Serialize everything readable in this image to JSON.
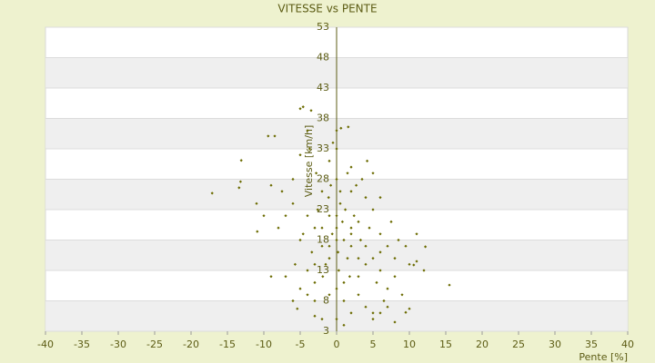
{
  "chart_data": {
    "type": "scatter",
    "title": "VITESSE vs PENTE",
    "x_label": "Pente [%]",
    "y_label": "Vitesse [km/h]",
    "color": "#6b6b00",
    "grid": true,
    "xlim": [
      -40,
      40
    ],
    "xticks": [
      -40,
      -35,
      -30,
      -25,
      -20,
      -15,
      -10,
      -5,
      0,
      5,
      10,
      15,
      20,
      25,
      30,
      35,
      40
    ],
    "ylim": [
      3,
      53
    ],
    "yticks": [
      3,
      8,
      13,
      18,
      23,
      28,
      33,
      38,
      43,
      48,
      53
    ],
    "x": [
      -17.1,
      -13.1,
      -13.2,
      -13.4,
      -9.4,
      -8.5,
      -5,
      -4.6,
      -3.5,
      0.6,
      1.6,
      15.5,
      12.2,
      11,
      10.6,
      10,
      9.5,
      -5.4,
      5,
      -10.9,
      -9,
      0,
      1,
      -1,
      2,
      -2,
      0.5,
      3,
      -3,
      1.5,
      -1.5,
      4,
      -4,
      0,
      2,
      -2,
      5,
      -5,
      6,
      -6,
      3,
      -3,
      0,
      1,
      -1,
      7,
      8,
      2,
      -1,
      0,
      -6,
      -7,
      -8,
      4,
      5,
      6,
      7,
      8,
      3,
      4,
      2,
      -2,
      -3,
      -4,
      -5,
      0.2,
      0.8,
      -0.6,
      1.2,
      -1.1,
      2.4,
      -2.6,
      3.3,
      -3.4,
      4.5,
      -4.6,
      1.8,
      -1.9,
      0.3,
      5.5,
      -5.7,
      6.5,
      9,
      10,
      -7,
      -6,
      2.7,
      -2.8,
      0,
      -0.5,
      3.5,
      4.2,
      -3.7,
      1,
      0,
      6,
      7.5,
      -7.5,
      -9,
      -11,
      -10,
      8.5,
      9.5,
      11,
      12,
      -4,
      -5,
      5,
      6,
      0.5,
      -0.8,
      1.5,
      2,
      -2,
      3,
      -3,
      1,
      -1,
      0,
      0,
      2,
      -1,
      4,
      -4,
      5,
      6,
      7,
      8,
      -3
    ],
    "y": [
      25.7,
      31.1,
      27.6,
      26.6,
      35.1,
      35.1,
      39.6,
      39.9,
      39.3,
      36.4,
      36.6,
      10.6,
      16.9,
      14.5,
      13.9,
      6.7,
      6.1,
      6.7,
      6,
      19.4,
      12,
      20,
      18,
      22,
      19,
      17,
      24,
      21,
      20,
      15,
      14,
      17,
      22,
      28,
      26,
      26,
      15,
      18,
      13,
      24,
      12,
      11,
      10,
      8,
      9,
      10,
      12,
      30,
      31,
      33,
      28,
      22,
      20,
      25,
      23,
      19,
      17,
      15,
      9,
      7,
      6,
      5,
      8,
      13,
      10,
      16,
      21,
      19,
      23,
      25,
      22,
      23,
      18,
      16,
      20,
      19,
      12,
      12,
      13,
      11,
      14,
      8,
      9,
      14,
      12,
      8,
      27,
      29,
      36,
      34,
      28,
      31,
      33,
      4,
      5,
      16,
      21,
      26,
      27,
      24,
      22,
      18,
      17,
      19,
      13,
      36,
      32,
      29,
      25,
      26,
      27,
      29,
      17,
      20,
      15,
      14,
      11,
      17,
      22,
      18,
      20,
      15,
      14,
      9,
      5,
      6,
      7,
      4.5,
      5.5
    ]
  }
}
